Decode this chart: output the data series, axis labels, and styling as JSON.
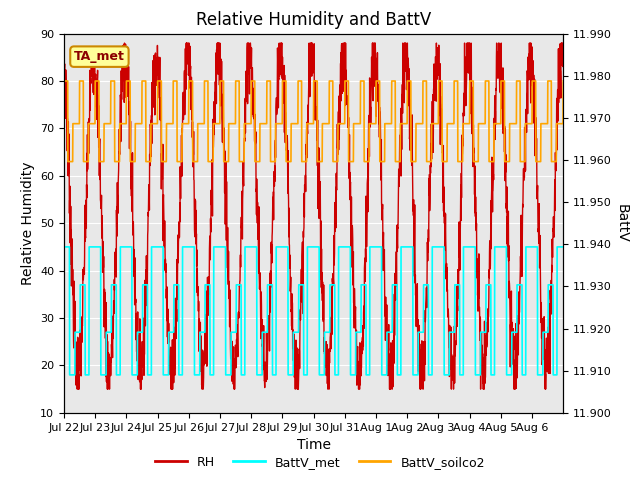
{
  "title": "Relative Humidity and BattV",
  "xlabel": "Time",
  "ylabel_left": "Relative Humidity",
  "ylabel_right": "BattV",
  "annotation_text": "TA_met",
  "ylim_left": [
    10,
    90
  ],
  "ylim_right": [
    11.9,
    11.99
  ],
  "yticks_left": [
    10,
    20,
    30,
    40,
    50,
    60,
    70,
    80,
    90
  ],
  "yticks_right": [
    11.9,
    11.91,
    11.92,
    11.93,
    11.94,
    11.95,
    11.96,
    11.97,
    11.98,
    11.99
  ],
  "xtick_labels": [
    "Jul 22",
    "Jul 23",
    "Jul 24",
    "Jul 25",
    "Jul 26",
    "Jul 27",
    "Jul 28",
    "Jul 29",
    "Jul 30",
    "Jul 31",
    "Aug 1",
    "Aug 2",
    "Aug 3",
    "Aug 4",
    "Aug 5",
    "Aug 6"
  ],
  "bg_color": "#e8e8e8",
  "rh_color": "#cc0000",
  "battv_met_color": "#00ffff",
  "battv_soilco2_color": "#ffa500",
  "legend_labels": [
    "RH",
    "BattV_met",
    "BattV_soilco2"
  ],
  "grid_color": "#ffffff",
  "title_fontsize": 12,
  "axis_label_fontsize": 10,
  "tick_fontsize": 8,
  "n_days": 16,
  "rh_seed": 7,
  "rh_min": 15,
  "rh_max": 88,
  "bv_met_levels": [
    45,
    18,
    27,
    37,
    18,
    45
  ],
  "bv_met_fracs": [
    0.0,
    0.18,
    0.35,
    0.52,
    0.68,
    0.8,
    1.0
  ],
  "bv_soilco2_levels": [
    80,
    63,
    71,
    80,
    63,
    71
  ],
  "bv_soilco2_fracs": [
    0.0,
    0.12,
    0.28,
    0.5,
    0.62,
    0.78,
    1.0
  ]
}
